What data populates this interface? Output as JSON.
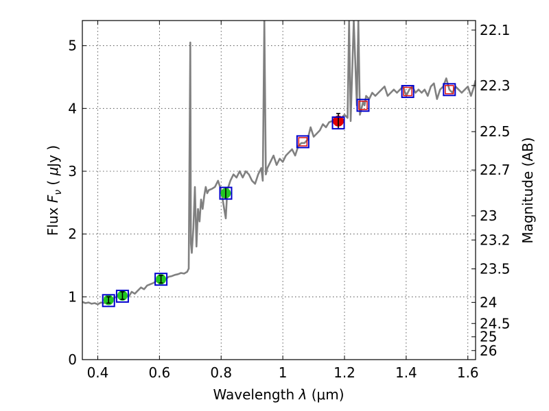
{
  "chart_data": {
    "type": "line",
    "xlabel": "Wavelength  λ (μm)",
    "ylabel": "Flux  F_ν  ( μJy )",
    "ylabel_parts": {
      "flux": "Flux",
      "symbol": "F",
      "subscript": "ν",
      "unit_open": "( ",
      "mu": "μ",
      "unit": "Jy )"
    },
    "xlabel_parts": {
      "word": "Wavelength",
      "lambda": "λ",
      "unit": "(μm)"
    },
    "y2label": "Magnitude (AB)",
    "xlim": [
      0.35,
      1.625
    ],
    "ylim": [
      0,
      5.4
    ],
    "grid": true,
    "x_ticks": [
      0.4,
      0.6,
      0.8,
      1.0,
      1.2,
      1.4,
      1.6
    ],
    "x_tick_labels": [
      "0.4",
      "0.6",
      "0.8",
      "1",
      "1.2",
      "1.4",
      "1.6"
    ],
    "y_ticks": [
      0,
      1,
      2,
      3,
      4,
      5
    ],
    "y_tick_labels": [
      "0",
      "1",
      "2",
      "3",
      "4",
      "5"
    ],
    "magnitude_ticks": [
      {
        "label": "22.1",
        "mag": 22.1
      },
      {
        "label": "22.3",
        "mag": 22.3
      },
      {
        "label": "22.5",
        "mag": 22.5
      },
      {
        "label": "22.7",
        "mag": 22.7
      },
      {
        "label": "23",
        "mag": 23.0
      },
      {
        "label": "23.2",
        "mag": 23.2
      },
      {
        "label": "23.5",
        "mag": 23.5
      },
      {
        "label": "24",
        "mag": 24.0
      },
      {
        "label": "24.5",
        "mag": 24.5
      },
      {
        "label": "25",
        "mag": 25.0
      },
      {
        "label": "26",
        "mag": 26.0
      }
    ],
    "spectrum": {
      "name": "model spectrum",
      "color": "#808080",
      "x": [
        0.35,
        0.36,
        0.37,
        0.38,
        0.39,
        0.4,
        0.41,
        0.42,
        0.43,
        0.44,
        0.45,
        0.46,
        0.47,
        0.48,
        0.49,
        0.5,
        0.51,
        0.52,
        0.53,
        0.54,
        0.55,
        0.56,
        0.57,
        0.58,
        0.59,
        0.6,
        0.61,
        0.62,
        0.63,
        0.64,
        0.65,
        0.66,
        0.67,
        0.68,
        0.69,
        0.695,
        0.7,
        0.702,
        0.705,
        0.71,
        0.715,
        0.72,
        0.725,
        0.73,
        0.735,
        0.74,
        0.745,
        0.75,
        0.755,
        0.76,
        0.77,
        0.78,
        0.79,
        0.8,
        0.81,
        0.815,
        0.82,
        0.83,
        0.84,
        0.85,
        0.86,
        0.87,
        0.88,
        0.89,
        0.9,
        0.91,
        0.92,
        0.93,
        0.935,
        0.94,
        0.945,
        0.95,
        0.96,
        0.97,
        0.98,
        0.99,
        1.0,
        1.01,
        1.02,
        1.03,
        1.04,
        1.05,
        1.06,
        1.07,
        1.08,
        1.09,
        1.1,
        1.11,
        1.12,
        1.13,
        1.14,
        1.15,
        1.16,
        1.17,
        1.18,
        1.19,
        1.2,
        1.21,
        1.215,
        1.22,
        1.23,
        1.24,
        1.245,
        1.25,
        1.26,
        1.265,
        1.27,
        1.28,
        1.29,
        1.3,
        1.31,
        1.32,
        1.33,
        1.34,
        1.35,
        1.36,
        1.37,
        1.38,
        1.39,
        1.4,
        1.41,
        1.42,
        1.43,
        1.44,
        1.45,
        1.46,
        1.47,
        1.48,
        1.49,
        1.5,
        1.51,
        1.52,
        1.53,
        1.54,
        1.55,
        1.56,
        1.57,
        1.58,
        1.59,
        1.6,
        1.61,
        1.62,
        1.625
      ],
      "y": [
        0.92,
        0.9,
        0.91,
        0.89,
        0.9,
        0.88,
        0.91,
        0.9,
        0.93,
        0.92,
        0.97,
        1.0,
        1.05,
        1.03,
        1.02,
        1.0,
        1.08,
        1.05,
        1.1,
        1.15,
        1.12,
        1.18,
        1.2,
        1.22,
        1.25,
        1.27,
        1.3,
        1.28,
        1.32,
        1.33,
        1.35,
        1.36,
        1.38,
        1.37,
        1.4,
        1.45,
        5.05,
        1.85,
        1.7,
        2.1,
        2.75,
        1.8,
        2.4,
        2.2,
        2.55,
        2.4,
        2.6,
        2.75,
        2.65,
        2.7,
        2.72,
        2.75,
        2.85,
        2.7,
        2.4,
        2.25,
        2.7,
        2.85,
        2.95,
        2.9,
        3.0,
        2.9,
        3.0,
        2.95,
        2.85,
        2.8,
        2.95,
        3.05,
        2.85,
        5.4,
        2.95,
        3.05,
        3.15,
        3.25,
        3.1,
        3.2,
        3.15,
        3.25,
        3.3,
        3.35,
        3.25,
        3.4,
        3.45,
        3.45,
        3.5,
        3.7,
        3.55,
        3.6,
        3.65,
        3.75,
        3.7,
        3.78,
        3.8,
        3.75,
        3.8,
        3.85,
        3.9,
        3.85,
        5.4,
        3.8,
        5.4,
        4.05,
        5.4,
        3.9,
        4.1,
        4.05,
        4.2,
        4.15,
        4.25,
        4.2,
        4.25,
        4.3,
        4.35,
        4.2,
        4.25,
        4.3,
        4.25,
        4.3,
        4.35,
        4.2,
        4.3,
        4.35,
        4.25,
        4.3,
        4.25,
        4.3,
        4.2,
        4.35,
        4.4,
        4.15,
        4.3,
        4.35,
        4.48,
        4.3,
        4.25,
        4.35,
        4.3,
        4.25,
        4.3,
        4.35,
        4.2,
        4.35,
        4.45
      ]
    },
    "green_points": {
      "name": "green photometry",
      "color": "#22c622",
      "x": [
        0.435,
        0.48,
        0.605,
        0.815
      ],
      "y": [
        0.95,
        1.02,
        1.28,
        2.65
      ],
      "yerr": [
        0.05,
        0.06,
        0.06,
        0.09
      ]
    },
    "red_points": {
      "name": "red photometry",
      "color": "#e00000",
      "x": [
        1.18
      ],
      "y": [
        3.8
      ],
      "yerr": [
        0.12
      ]
    },
    "blue_squares": {
      "name": "model fluxes (blue squares)",
      "color": "#0000cc",
      "x": [
        0.435,
        0.48,
        0.605,
        0.815,
        1.065,
        1.18,
        1.26,
        1.405,
        1.54
      ],
      "y": [
        0.94,
        1.01,
        1.28,
        2.65,
        3.47,
        3.77,
        4.05,
        4.27,
        4.3
      ]
    },
    "open_red_squares": {
      "name": "open red squares",
      "color": "#dd1111",
      "x": [
        1.065,
        1.26,
        1.405,
        1.54
      ],
      "y": [
        3.47,
        4.05,
        4.27,
        4.3
      ]
    }
  }
}
